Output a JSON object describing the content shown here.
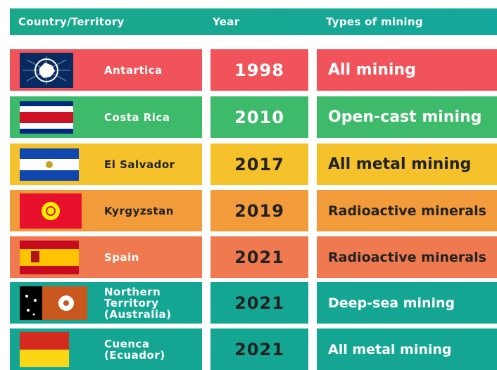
{
  "table": {
    "header": [
      "Country/Territory",
      "Year",
      "Types of mining"
    ],
    "rows": [
      [
        "Antartica",
        "1998",
        "All mining"
      ],
      [
        "Costa Rica",
        "2010",
        "Open-cast mining"
      ],
      [
        "El Salvador",
        "2017",
        "All metal mining"
      ],
      [
        "Kyrgyzstan",
        "2019",
        "Radioactive minerals"
      ],
      [
        "Spain",
        "2021",
        "Radioactive minerals"
      ],
      [
        "Northern Territory (Australia)",
        "2021",
        "Deep-sea mining"
      ],
      [
        "Cuenca (Ecuador)",
        "2021",
        "All metal mining"
      ]
    ]
  }
}
